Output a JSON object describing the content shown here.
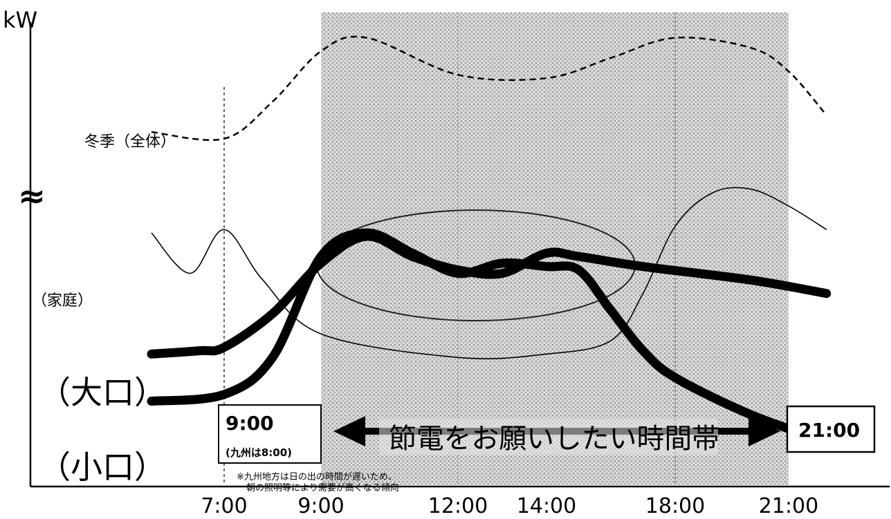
{
  "chart_data": {
    "type": "line",
    "ylabel": "kW",
    "axis_break_symbol": "≈",
    "x_ticks": [
      "7:00",
      "9:00",
      "12:00",
      "14:00",
      "18:00",
      "21:00"
    ],
    "series": [
      {
        "name": "冬季（全体）",
        "style": "dashed",
        "curve": "winter",
        "points": [
          [
            5.5,
            84
          ],
          [
            7,
            82
          ],
          [
            8,
            93
          ],
          [
            9,
            108
          ],
          [
            10,
            112
          ],
          [
            12,
            101
          ],
          [
            14,
            100
          ],
          [
            16,
            106
          ],
          [
            18,
            112
          ],
          [
            20,
            109
          ],
          [
            21,
            102
          ],
          [
            22,
            89
          ]
        ]
      },
      {
        "name": "（家庭）",
        "style": "thin",
        "curve": "household",
        "points": [
          [
            5.5,
            54
          ],
          [
            6.3,
            42
          ],
          [
            7,
            55
          ],
          [
            7.8,
            40
          ],
          [
            9,
            24
          ],
          [
            12,
            17
          ],
          [
            14,
            18
          ],
          [
            16,
            22
          ],
          [
            17,
            36
          ],
          [
            18,
            56
          ],
          [
            19,
            66
          ],
          [
            20,
            67
          ],
          [
            21,
            62
          ],
          [
            22,
            55
          ]
        ]
      },
      {
        "name": "（大口）",
        "style": "thick",
        "curve": "large",
        "points": [
          [
            5.5,
            18
          ],
          [
            6.5,
            19
          ],
          [
            7,
            20
          ],
          [
            8,
            30
          ],
          [
            9,
            45
          ],
          [
            10,
            53
          ],
          [
            11,
            47
          ],
          [
            12,
            43
          ],
          [
            13,
            42
          ],
          [
            14,
            48
          ],
          [
            15,
            47
          ],
          [
            17,
            44
          ],
          [
            20,
            40
          ],
          [
            22,
            36
          ]
        ]
      },
      {
        "name": "（小口）",
        "style": "thick",
        "curve": "small",
        "points": [
          [
            5.5,
            4
          ],
          [
            7,
            6
          ],
          [
            8,
            17
          ],
          [
            9,
            47
          ],
          [
            10,
            54
          ],
          [
            11,
            48
          ],
          [
            12,
            42
          ],
          [
            13,
            45
          ],
          [
            14,
            44
          ],
          [
            15,
            43
          ],
          [
            16,
            31
          ],
          [
            17,
            19
          ],
          [
            18,
            11
          ],
          [
            20,
            0
          ],
          [
            22,
            -8
          ]
        ]
      }
    ],
    "highlight_band": {
      "from": "9:00",
      "to": "21:00"
    },
    "arrow_label": "節電をお願いしたい時間帯",
    "start_box": {
      "time": "9:00",
      "sub": "(九州は8:00)"
    },
    "end_box": {
      "time": "21:00"
    },
    "note_lines": [
      "※九州地方は日の出の時間が遅いため、",
      "朝の照明等により需要が高くなる傾向"
    ],
    "grid": false
  }
}
